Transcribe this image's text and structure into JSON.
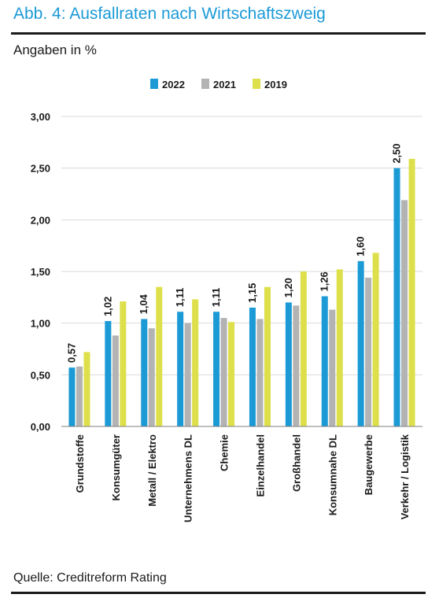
{
  "header": {
    "title": "Abb. 4: Ausfallraten nach Wirtschaftszweig",
    "subtitle": "Angaben in %"
  },
  "footer": {
    "source": "Quelle: Creditreform Rating"
  },
  "chart_data": {
    "type": "bar",
    "title": "Abb. 4: Ausfallraten nach Wirtschaftszweig",
    "subtitle": "Angaben in %",
    "xlabel": "",
    "ylabel": "",
    "ylim": [
      0,
      3
    ],
    "yticks": [
      0,
      0.5,
      1,
      1.5,
      2,
      2.5,
      3
    ],
    "ytick_labels": [
      "0,00",
      "0,50",
      "1,00",
      "1,50",
      "2,00",
      "2,50",
      "3,00"
    ],
    "grid": "horizontal",
    "legend_position": "top",
    "categories": [
      "Grundstoffe",
      "Konsumgüter",
      "Metall / Elektro",
      "Unternehmens DL",
      "Chemie",
      "Einzelhandel",
      "Großhandel",
      "Konsumnahe DL",
      "Baugewerbe",
      "Verkehr / Logistik"
    ],
    "series": [
      {
        "name": "2022",
        "color": "#1b9ad6",
        "values": [
          0.57,
          1.02,
          1.04,
          1.11,
          1.11,
          1.15,
          1.2,
          1.26,
          1.6,
          2.5
        ]
      },
      {
        "name": "2021",
        "color": "#b3b3b3",
        "values": [
          0.58,
          0.88,
          0.95,
          1.0,
          1.05,
          1.04,
          1.17,
          1.13,
          1.44,
          2.19
        ]
      },
      {
        "name": "2019",
        "color": "#dde04a",
        "values": [
          0.72,
          1.21,
          1.35,
          1.23,
          1.01,
          1.35,
          1.5,
          1.52,
          1.68,
          2.59
        ]
      }
    ],
    "data_labels": {
      "series": "2022",
      "labels": [
        "0,57",
        "1,02",
        "1,04",
        "1,11",
        "1,11",
        "1,15",
        "1,20",
        "1,26",
        "1,60",
        "2,50"
      ]
    }
  }
}
